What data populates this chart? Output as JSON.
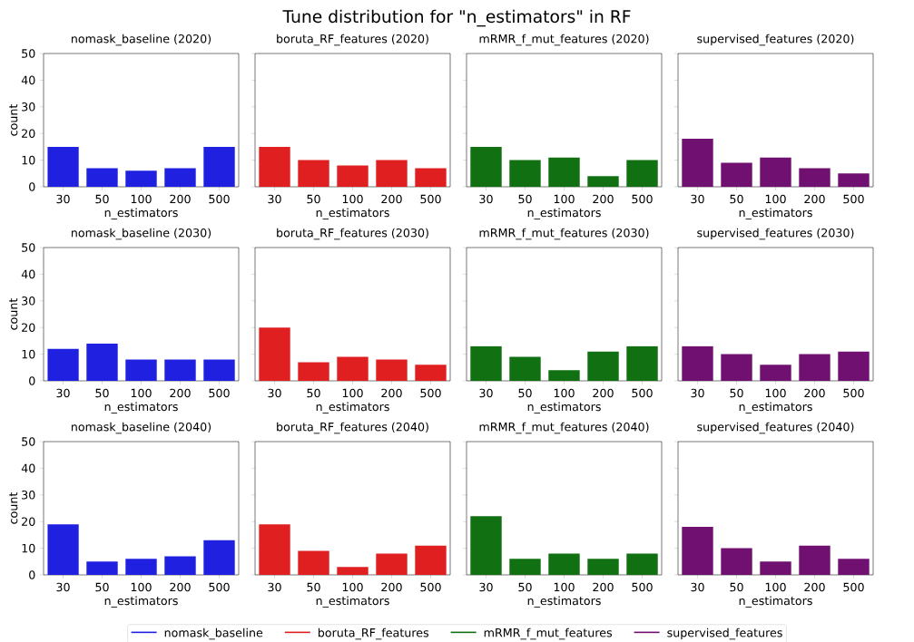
{
  "chart_data": [
    {
      "type": "bar",
      "title": "nomask_baseline (2020)",
      "xlabel": "n_estimators",
      "ylabel": "count",
      "annotations": [
        "Tune distribution for \"n_estimators\" in RF"
      ],
      "legend": "bottom",
      "categories": [
        "30",
        "50",
        "100",
        "200",
        "500"
      ],
      "ylim": [
        0,
        50
      ],
      "yticks": [
        0,
        10,
        20,
        30,
        40,
        50
      ],
      "series": [
        {
          "name": "nomask_baseline",
          "color": "#2020e0",
          "values": [
            15,
            7,
            6,
            7,
            15
          ]
        }
      ]
    },
    {
      "type": "bar",
      "title": "boruta_RF_features (2020)",
      "xlabel": "n_estimators",
      "legend": "bottom",
      "tick_labels": "x",
      "categories": [
        "30",
        "50",
        "100",
        "200",
        "500"
      ],
      "ylim": [
        0,
        50
      ],
      "yticks": [
        0,
        10,
        20,
        30,
        40,
        50
      ],
      "series": [
        {
          "name": "boruta_RF_features",
          "color": "#e02020",
          "values": [
            15,
            10,
            8,
            10,
            7
          ]
        }
      ]
    },
    {
      "type": "bar",
      "title": "mRMR_f_mut_features (2020)",
      "xlabel": "n_estimators",
      "legend": "bottom",
      "tick_labels": "x",
      "categories": [
        "30",
        "50",
        "100",
        "200",
        "500"
      ],
      "ylim": [
        0,
        50
      ],
      "yticks": [
        0,
        10,
        20,
        30,
        40,
        50
      ],
      "series": [
        {
          "name": "mRMR_f_mut_features",
          "color": "#117011",
          "values": [
            15,
            10,
            11,
            4,
            10
          ]
        }
      ]
    },
    {
      "type": "bar",
      "title": "supervised_features (2020)",
      "xlabel": "n_estimators",
      "legend": "bottom",
      "tick_labels": "x",
      "categories": [
        "30",
        "50",
        "100",
        "200",
        "500"
      ],
      "ylim": [
        0,
        50
      ],
      "yticks": [
        0,
        10,
        20,
        30,
        40,
        50
      ],
      "series": [
        {
          "name": "supervised_features",
          "color": "#701070",
          "values": [
            18,
            9,
            11,
            7,
            5
          ]
        }
      ]
    },
    {
      "type": "bar",
      "title": "nomask_baseline (2030)",
      "xlabel": "n_estimators",
      "ylabel": "count",
      "categories": [
        "30",
        "50",
        "100",
        "200",
        "500"
      ],
      "ylim": [
        0,
        50
      ],
      "yticks": [
        0,
        10,
        20,
        30,
        40,
        50
      ],
      "series": [
        {
          "color": "#2020e0",
          "values": [
            12,
            14,
            8,
            8,
            8
          ]
        }
      ]
    },
    {
      "type": "bar",
      "title": "boruta_RF_features (2030)",
      "xlabel": "n_estimators",
      "tick_labels": "x",
      "categories": [
        "30",
        "50",
        "100",
        "200",
        "500"
      ],
      "ylim": [
        0,
        50
      ],
      "yticks": [
        0,
        10,
        20,
        30,
        40,
        50
      ],
      "series": [
        {
          "color": "#e02020",
          "values": [
            20,
            7,
            9,
            8,
            6
          ]
        }
      ]
    },
    {
      "type": "bar",
      "title": "mRMR_f_mut_features (2030)",
      "xlabel": "n_estimators",
      "tick_labels": "x",
      "categories": [
        "30",
        "50",
        "100",
        "200",
        "500"
      ],
      "ylim": [
        0,
        50
      ],
      "yticks": [
        0,
        10,
        20,
        30,
        40,
        50
      ],
      "series": [
        {
          "color": "#117011",
          "values": [
            13,
            9,
            4,
            11,
            13
          ]
        }
      ]
    },
    {
      "type": "bar",
      "title": "supervised_features (2030)",
      "xlabel": "n_estimators",
      "tick_labels": "x",
      "categories": [
        "30",
        "50",
        "100",
        "200",
        "500"
      ],
      "ylim": [
        0,
        50
      ],
      "yticks": [
        0,
        10,
        20,
        30,
        40,
        50
      ],
      "series": [
        {
          "color": "#701070",
          "values": [
            13,
            10,
            6,
            10,
            11
          ]
        }
      ]
    },
    {
      "type": "bar",
      "title": "nomask_baseline (2040)",
      "xlabel": "n_estimators",
      "ylabel": "count",
      "categories": [
        "30",
        "50",
        "100",
        "200",
        "500"
      ],
      "ylim": [
        0,
        50
      ],
      "yticks": [
        0,
        10,
        20,
        30,
        40,
        50
      ],
      "series": [
        {
          "color": "#2020e0",
          "values": [
            19,
            5,
            6,
            7,
            13
          ]
        }
      ]
    },
    {
      "type": "bar",
      "title": "boruta_RF_features (2040)",
      "xlabel": "n_estimators",
      "tick_labels": "x",
      "categories": [
        "30",
        "50",
        "100",
        "200",
        "500"
      ],
      "ylim": [
        0,
        50
      ],
      "yticks": [
        0,
        10,
        20,
        30,
        40,
        50
      ],
      "series": [
        {
          "color": "#e02020",
          "values": [
            19,
            9,
            3,
            8,
            11
          ]
        }
      ]
    },
    {
      "type": "bar",
      "title": "mRMR_f_mut_features (2040)",
      "xlabel": "n_estimators",
      "tick_labels": "x",
      "categories": [
        "30",
        "50",
        "100",
        "200",
        "500"
      ],
      "ylim": [
        0,
        50
      ],
      "yticks": [
        0,
        10,
        20,
        30,
        40,
        50
      ],
      "series": [
        {
          "color": "#117011",
          "values": [
            22,
            6,
            8,
            6,
            8
          ]
        }
      ]
    },
    {
      "type": "bar",
      "title": "supervised_features (2040)",
      "xlabel": "n_estimators",
      "tick_labels": "x",
      "categories": [
        "30",
        "50",
        "100",
        "200",
        "500"
      ],
      "ylim": [
        0,
        50
      ],
      "yticks": [
        0,
        10,
        20,
        30,
        40,
        50
      ],
      "series": [
        {
          "color": "#701070",
          "values": [
            18,
            10,
            5,
            11,
            6
          ]
        }
      ]
    }
  ]
}
